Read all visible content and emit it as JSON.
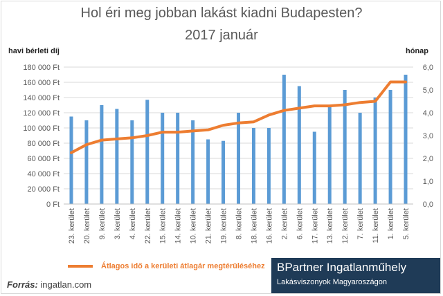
{
  "chart_data": {
    "type": "bar",
    "title": "Hol éri meg jobban lakást kiadni Budapesten?",
    "subtitle": "2017 január",
    "ylabel_left": "havi bérleti díj",
    "ylabel_right": "hónap",
    "categories": [
      "23. kerület",
      "20. kerület",
      "9. kerület",
      "3. kerület",
      "4. kerület",
      "22. kerület",
      "15. kerület",
      "14. kerület",
      "10. kerület",
      "21. kerület",
      "19. kerület",
      "8. kerület",
      "18. kerület",
      "16. kerület",
      "2. kerület",
      "6. kerület",
      "17. kerület",
      "13. kerület",
      "12. kerület",
      "7. kerület",
      "11. kerület",
      "1. kerület",
      "5. kerület"
    ],
    "series": [
      {
        "type": "bar",
        "axis": "left",
        "color": "#5b9bd5",
        "values": [
          115000,
          110000,
          130000,
          125000,
          110000,
          137000,
          120000,
          120000,
          110000,
          85000,
          83000,
          120000,
          100000,
          100000,
          170000,
          155000,
          95000,
          130000,
          150000,
          120000,
          140000,
          150000,
          170000
        ]
      },
      {
        "type": "line",
        "axis": "right",
        "name": "Átlagos idő a kerületi átlagár megtérüléséhez",
        "color": "#ed7d31",
        "values": [
          2.25,
          2.6,
          2.8,
          2.85,
          2.9,
          3.0,
          3.15,
          3.15,
          3.2,
          3.25,
          3.45,
          3.55,
          3.6,
          3.9,
          4.1,
          4.2,
          4.3,
          4.3,
          4.35,
          4.45,
          4.5,
          5.35,
          5.35
        ]
      }
    ],
    "ylim_left": [
      0,
      180000
    ],
    "yticks_left": [
      "0 Ft",
      "20 000 Ft",
      "40 000 Ft",
      "60 000 Ft",
      "80 000 Ft",
      "100 000 Ft",
      "120 000 Ft",
      "140 000 Ft",
      "160 000 Ft",
      "180 000 Ft"
    ],
    "ylim_right": [
      0,
      6
    ],
    "yticks_right": [
      "0,0",
      "1,0",
      "2,0",
      "3,0",
      "4,0",
      "5,0",
      "6,0"
    ],
    "grid": true,
    "legend_position": "bottom"
  },
  "footer": {
    "source_label": "Forrás:",
    "source_value": "ingatlan.com",
    "brand_name": "BPartner Ingatlanműhely",
    "brand_tagline": "Lakásviszonyok Magyaroszágon"
  },
  "colors": {
    "bar": "#5b9bd5",
    "line": "#ed7d31",
    "brand_bg": "#1f3b57"
  }
}
